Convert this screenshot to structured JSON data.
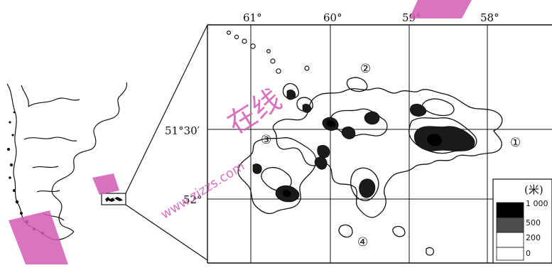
{
  "map": {
    "longitude_labels": [
      "61°",
      "60°",
      "59°",
      "58°"
    ],
    "latitude_labels": [
      "51°30′",
      "52°"
    ],
    "region_markers": [
      "①",
      "②",
      "③",
      "④"
    ],
    "colors": {
      "ink": "#111111",
      "watermark": "#d25cb4",
      "band_1000": "#000000",
      "band_500_1000": "#1a1a1a",
      "band_200_500": "#4d4d4d",
      "band_0_200": "#ffffff"
    }
  },
  "legend": {
    "unit": "(米)",
    "levels": [
      "1 000",
      "500",
      "200",
      "0"
    ]
  },
  "watermark": {
    "text_cn": "在线",
    "text_url": "www.zizzs.com"
  }
}
